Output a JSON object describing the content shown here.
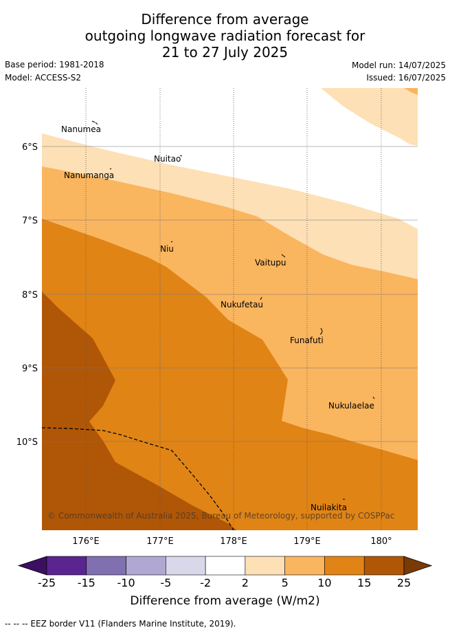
{
  "title": {
    "line1": "Difference from average",
    "line2": "outgoing longwave radiation forecast for",
    "line3": "21 to 27 July 2025"
  },
  "meta": {
    "base_period": "Base period: 1981-2018",
    "model": "Model: ACCESS-S2",
    "model_run": "Model run: 14/07/2025",
    "issued": "Issued: 16/07/2025"
  },
  "map": {
    "lon_ticks": [
      "176°E",
      "177°E",
      "178°E",
      "179°E",
      "180°"
    ],
    "lat_ticks": [
      "6°S",
      "7°S",
      "8°S",
      "9°S",
      "10°S"
    ],
    "places": [
      "Nanumea",
      "Nuitao",
      "Nanumanga",
      "Niu",
      "Vaitupu",
      "Nukufetau",
      "Funafuti",
      "Nukulaelae",
      "Nuilakita"
    ],
    "copyright": "© Commonwealth of Australia 2025, Bureau of Meteorology, supported by COSPPac"
  },
  "colorbar": {
    "ticks": [
      "-25",
      "-15",
      "-10",
      "-5",
      "-2",
      "2",
      "5",
      "10",
      "15",
      "25"
    ],
    "colors": [
      "#3d0f63",
      "#5a2590",
      "#8070b0",
      "#b0a8d2",
      "#d8d8ea",
      "#ffffff",
      "#fde0b6",
      "#fab55f",
      "#e08416",
      "#b05607",
      "#7a3a06"
    ],
    "label": "Difference from average (W/m2)"
  },
  "footer": "-- -- -- EEZ border V11 (Flanders Marine Institute, 2019)."
}
